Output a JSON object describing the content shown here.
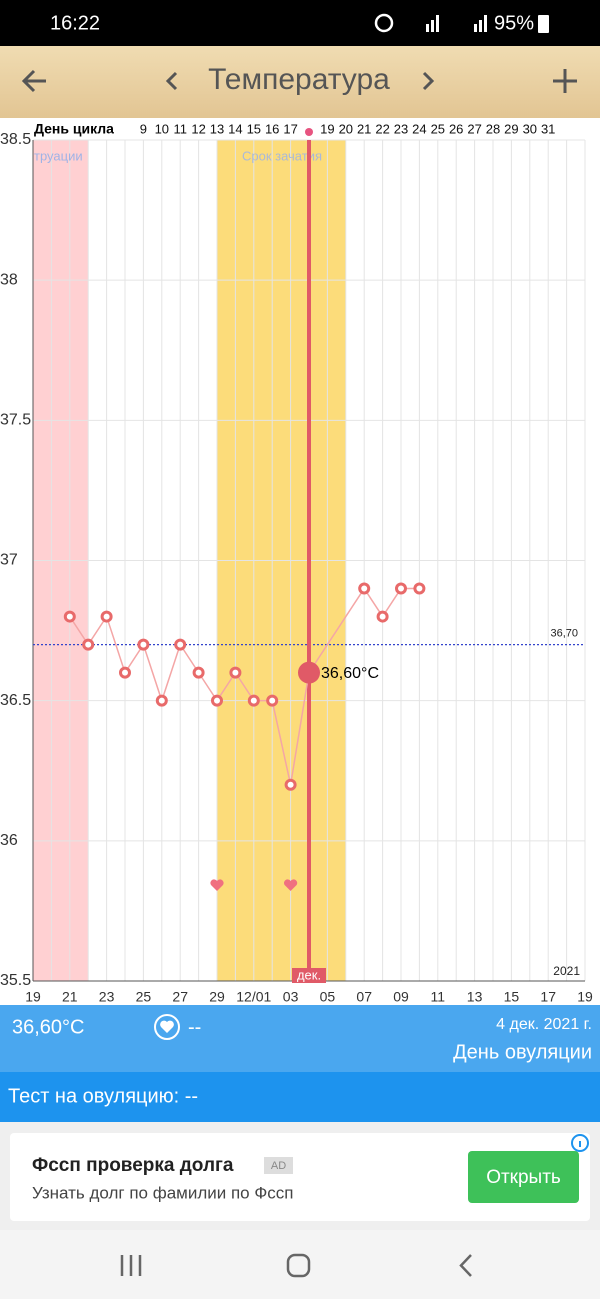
{
  "status_bar": {
    "time": "16:22",
    "battery": "95%"
  },
  "toolbar": {
    "title": "Температура"
  },
  "cycle_row": {
    "label": "День цикла",
    "days": [
      "9",
      "10",
      "11",
      "12",
      "13",
      "14",
      "15",
      "16",
      "17",
      null,
      "19",
      "20",
      "21",
      "22",
      "23",
      "24",
      "25",
      "26",
      "27",
      "28",
      "29",
      "30",
      "31"
    ]
  },
  "chart_data": {
    "type": "line",
    "categories": [
      "19",
      null,
      "21",
      null,
      "23",
      null,
      "25",
      null,
      "27",
      null,
      "29",
      null,
      "12/01",
      null,
      "03",
      null,
      "05",
      null,
      "07",
      null,
      "09",
      null,
      "11",
      null,
      "13",
      null,
      "15",
      null,
      "17",
      null,
      "19"
    ],
    "series": [
      {
        "color": "#e86a6a",
        "values": [
          null,
          null,
          36.8,
          36.7,
          36.8,
          36.6,
          36.7,
          36.5,
          36.7,
          36.6,
          36.5,
          36.6,
          36.5,
          36.5,
          36.2,
          36.6,
          null,
          null,
          36.9,
          36.8,
          36.9,
          36.9,
          null,
          null,
          null,
          null,
          null,
          null,
          null,
          null,
          null
        ]
      }
    ],
    "ylim": [
      35.5,
      38.5
    ],
    "yticks": [
      35.5,
      36,
      36.5,
      37,
      37.5,
      38,
      38.5
    ],
    "grid": true,
    "coverline": {
      "value": 36.7,
      "label": "36,70"
    },
    "selected": {
      "value": 36.6,
      "label": "36,60°C",
      "month_label": "дек."
    },
    "menstruation_label": "труации",
    "fertile_label": "Срок зачатия",
    "year_label": "2021"
  },
  "info": {
    "temperature": "36,60°C",
    "sex": "--",
    "date": "4 дек. 2021 г.",
    "day_type": "День овуляции"
  },
  "ovulation_test": "Тест на овуляцию: --",
  "ad": {
    "title": "Фссп проверка долга",
    "badge": "AD",
    "text": "Узнать долг по фамилии по Фссп",
    "button": "Открыть"
  }
}
